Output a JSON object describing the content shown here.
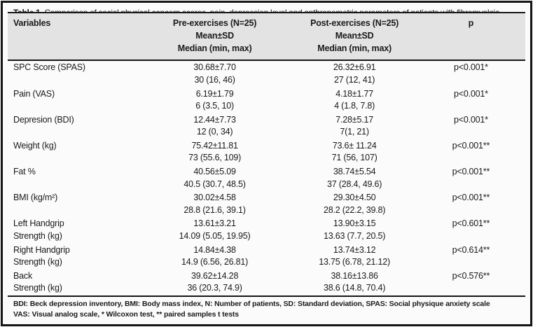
{
  "colors": {
    "frame_border": "#161616",
    "header_bg": "#e3e3e3",
    "page_bg": "#fbfbfb",
    "text": "#1a1a1a"
  },
  "table": {
    "title_label": "Table 1.",
    "title_text": " Comparison of social physical concern scores, pain, depression level and anthropometric parameters of patients with fibromyalgia",
    "header": {
      "variables": "Variables",
      "pre_title": "Pre-exercises (N=25)",
      "pre_line2": "Mean±SD",
      "pre_line3": "Median (min, max)",
      "post_title": "Post-exercises (N=25)",
      "post_line2": "Mean±SD",
      "post_line3": "Median (min, max)",
      "p": "p"
    },
    "rows": [
      {
        "label1": "SPC Score (SPAS)",
        "label2": "",
        "pre1": "30.68±7.70",
        "pre2": "30 (16, 46)",
        "post1": "26.32±6.91",
        "post2": "27 (12, 41)",
        "p": "p<0.001*"
      },
      {
        "label1": "Pain (VAS)",
        "label2": "",
        "pre1": "6.19±1.79",
        "pre2": "6 (3.5, 10)",
        "post1": "4.18±1.77",
        "post2": "4 (1.8, 7.8)",
        "p": "p<0.001*"
      },
      {
        "label1": "Depresion (BDI)",
        "label2": "",
        "pre1": "12.44±7.73",
        "pre2": "12 (0, 34)",
        "post1": "7.28±5.17",
        "post2": "7(1, 21)",
        "p": "p<0.001*"
      },
      {
        "label1": "Weight (kg)",
        "label2": "",
        "pre1": "75.42±11.81",
        "pre2": "73 (55.6, 109)",
        "post1": "73.6± 11.24",
        "post2": "71 (56, 107)",
        "p": "p<0.001**"
      },
      {
        "label1": "Fat %",
        "label2": "",
        "pre1": "40.56±5.09",
        "pre2": "40.5 (30.7, 48.5)",
        "post1": "38.74±5.54",
        "post2": "37 (28.4, 49.6)",
        "p": "p<0.001**"
      },
      {
        "label1": "BMI (kg/m²)",
        "label2": "",
        "pre1": "30.02±4.58",
        "pre2": "28.8 (21.6, 39.1)",
        "post1": "29.30±4.50",
        "post2": "28.2 (22.2, 39.8)",
        "p": "p<0.001**"
      },
      {
        "label1": "Left Handgrip",
        "label2": "Strength (kg)",
        "pre1": "13.61±3.21",
        "pre2": "14.09 (5.05, 19.95)",
        "post1": "13.90±3.15",
        "post2": "13.63 (7.7, 20.5)",
        "p": "p<0.601**"
      },
      {
        "label1": "Right Handgrip",
        "label2": "Strength (kg)",
        "pre1": "14.84±4.38",
        "pre2": "14.9 (6.56, 26.81)",
        "post1": "13.74±3.12",
        "post2": "13.75 (6.78, 21.12)",
        "p": "p<0.614**"
      },
      {
        "label1": "Back",
        "label2": "Strength (kg)",
        "pre1": "39.62±14.28",
        "pre2": "36 (20.3, 74.9)",
        "post1": "38.16±13.86",
        "post2": "38.6 (14.8, 70.4)",
        "p": "p<0.576**"
      }
    ],
    "footnote_line1": "BDI: Beck depression inventory, BMI: Body mass index, N: Number of patients, SD: Standard deviation, SPAS: Social physique anxiety scale",
    "footnote_line2": "VAS: Visual analog scale, * Wilcoxon test, ** paired samples t tests"
  }
}
